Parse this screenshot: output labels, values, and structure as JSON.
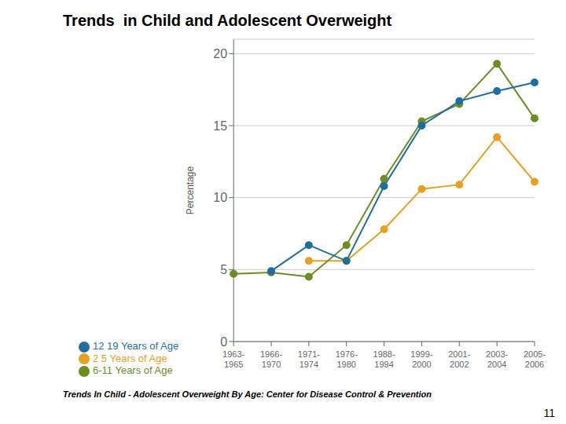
{
  "chart_data": {
    "type": "line",
    "title": "Trends  in Child and Adolescent Overweight",
    "subtitle": "Trends In Child - Adolescent Overweight By Age: Center for Disease Control & Prevention",
    "ylabel": "Percentage",
    "annotations": [
      "11"
    ],
    "categories": [
      "1963-\n1965",
      "1966-\n1970",
      "1971-\n1974",
      "1976-\n1980",
      "1988-\n1994",
      "1999-\n2000",
      "2001-\n2002",
      "2003-\n2004",
      "2005-\n2006"
    ],
    "series": [
      {
        "name": "2 5 Years of Age",
        "color": "#E8A020",
        "marker": "circle",
        "values": [
          null,
          null,
          5.6,
          5.6,
          7.8,
          10.6,
          10.9,
          14.2,
          11.1
        ]
      },
      {
        "name": "6-11 Years of Age",
        "color": "#6B8E23",
        "marker": "circle",
        "values": [
          4.7,
          4.8,
          4.5,
          6.7,
          11.3,
          15.3,
          16.5,
          19.3,
          15.5
        ]
      },
      {
        "name": "12 19 Years of Age",
        "color": "#1E6FA0",
        "marker": "circle",
        "values": [
          null,
          4.9,
          6.7,
          5.6,
          10.8,
          15.0,
          16.7,
          17.4,
          18.0
        ]
      }
    ],
    "ylim": [
      0,
      21
    ],
    "yticks": [
      0,
      5,
      10,
      15,
      20
    ],
    "grid": true,
    "legend": "lower left"
  }
}
